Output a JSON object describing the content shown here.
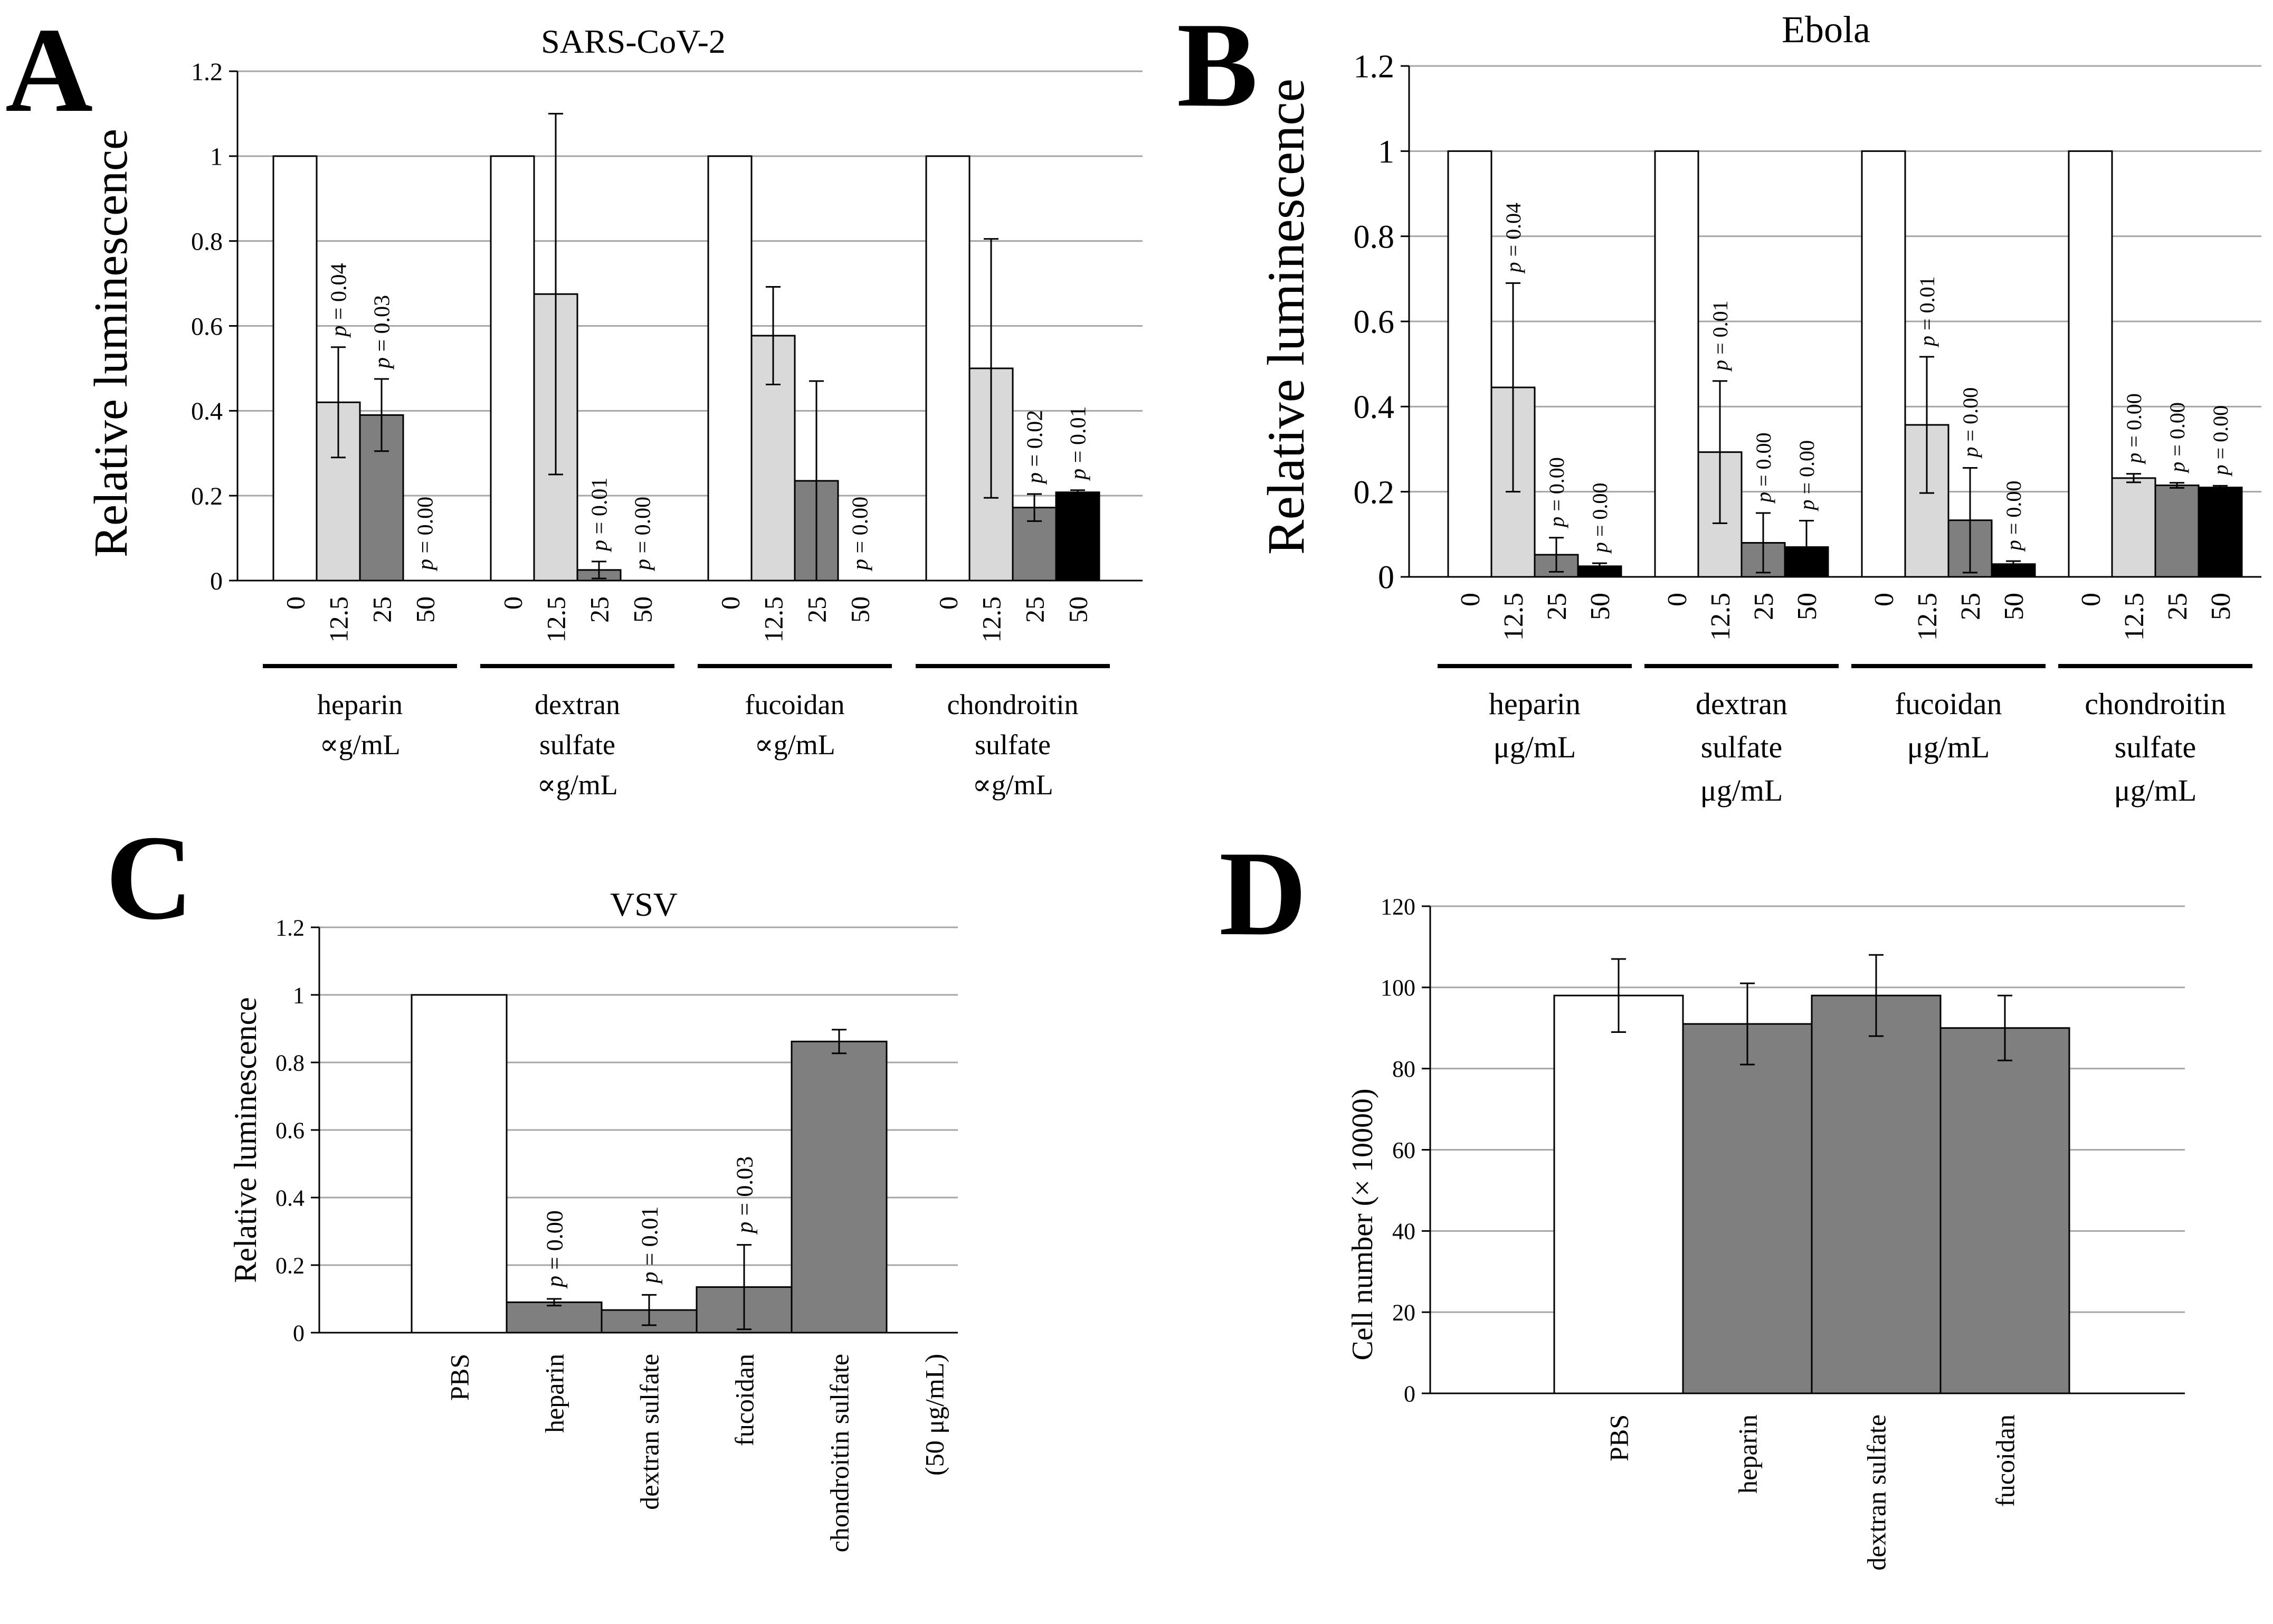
{
  "figure": {
    "colors": {
      "white": "#ffffff",
      "light": "#d9d9d9",
      "mid": "#7f7f7f",
      "black": "#000000",
      "grid": "#a6a6a6",
      "stroke": "#000000"
    }
  },
  "chart_data": [
    {
      "panel": "A",
      "type": "bar",
      "title": "SARS-CoV-2",
      "ylabel": "Relative luminescence",
      "ylim": [
        0,
        1.2
      ],
      "yticks": [
        "0",
        "0.2",
        "0.4",
        "0.6",
        "0.8",
        "1",
        "1.2"
      ],
      "grid": true,
      "doses": [
        "0",
        "12.5",
        "25",
        "50"
      ],
      "groups": [
        {
          "label_lines": [
            "heparin",
            "∝g/mL"
          ],
          "values": [
            1,
            0.42,
            0.39,
            0
          ],
          "errors": [
            null,
            0.13,
            0.085,
            null
          ],
          "pvalues": [
            null,
            "= 0.04",
            "= 0.03",
            "= 0.00"
          ]
        },
        {
          "label_lines": [
            "dextran",
            "sulfate",
            "∝g/mL"
          ],
          "values": [
            1,
            0.675,
            0.025,
            0
          ],
          "errors": [
            null,
            0.425,
            0.02,
            null
          ],
          "pvalues": [
            null,
            null,
            "= 0.01",
            "= 0.00"
          ]
        },
        {
          "label_lines": [
            "fucoidan",
            "∝g/mL"
          ],
          "values": [
            1,
            0.577,
            0.235,
            0
          ],
          "errors": [
            null,
            0.115,
            0.235,
            null
          ],
          "pvalues": [
            null,
            null,
            null,
            "= 0.00"
          ]
        },
        {
          "label_lines": [
            "chondroitin",
            "sulfate",
            "∝g/mL"
          ],
          "values": [
            1,
            0.5,
            0.172,
            0.208
          ],
          "errors": [
            null,
            0.305,
            0.032,
            0.005
          ],
          "pvalues": [
            null,
            null,
            "= 0.02",
            "= 0.01"
          ]
        }
      ]
    },
    {
      "panel": "B",
      "type": "bar",
      "title": "Ebola",
      "ylabel": "Relative luminescence",
      "ylim": [
        0,
        1.2
      ],
      "yticks": [
        "0",
        "0.2",
        "0.4",
        "0.6",
        "0.8",
        "1",
        "1.2"
      ],
      "grid": true,
      "doses": [
        "0",
        "12.5",
        "25",
        "50"
      ],
      "groups": [
        {
          "label_lines": [
            "heparin",
            "μg/mL"
          ],
          "values": [
            1,
            0.445,
            0.052,
            0.025
          ],
          "errors": [
            null,
            0.245,
            0.04,
            0.007
          ],
          "pvalues": [
            null,
            "= 0.04",
            "= 0.00",
            "= 0.00"
          ]
        },
        {
          "label_lines": [
            "dextran",
            "sulfate",
            "μg/mL"
          ],
          "values": [
            1,
            0.293,
            0.08,
            0.07
          ],
          "errors": [
            null,
            0.167,
            0.07,
            0.062
          ],
          "pvalues": [
            null,
            "= 0.01",
            "= 0.00",
            "= 0.00"
          ]
        },
        {
          "label_lines": [
            "fucoidan",
            "μg/mL"
          ],
          "values": [
            1,
            0.357,
            0.133,
            0.03
          ],
          "errors": [
            null,
            0.16,
            0.123,
            0.007
          ],
          "pvalues": [
            null,
            "= 0.01",
            "= 0.00",
            "= 0.00"
          ]
        },
        {
          "label_lines": [
            "chondroitin",
            "sulfate",
            "μg/mL"
          ],
          "values": [
            1,
            0.232,
            0.215,
            0.21
          ],
          "errors": [
            null,
            0.01,
            0.006,
            0.004
          ],
          "pvalues": [
            null,
            "= 0.00",
            "= 0.00",
            "= 0.00"
          ]
        }
      ]
    },
    {
      "panel": "C",
      "type": "bar",
      "title": "VSV",
      "ylabel": "Relative luminescence",
      "ylim": [
        0,
        1.2
      ],
      "yticks": [
        "0",
        "0.2",
        "0.4",
        "0.6",
        "0.8",
        "1",
        "1.2"
      ],
      "grid": true,
      "categories": [
        "PBS",
        "heparin",
        "dextran sulfate",
        "fucoidan",
        "chondroitin sulfate"
      ],
      "values": [
        1,
        0.09,
        0.067,
        0.135,
        0.862
      ],
      "errors": [
        null,
        0.01,
        0.045,
        0.125,
        0.035
      ],
      "pvalues": [
        null,
        "= 0.00",
        "= 0.01",
        "= 0.03",
        null
      ],
      "fills": [
        "white",
        "mid",
        "mid",
        "mid",
        "mid"
      ],
      "extra_label": "(50 μg/mL)"
    },
    {
      "panel": "D",
      "type": "bar",
      "title": "",
      "ylabel": "Cell number (× 10000)",
      "ylim": [
        0,
        120
      ],
      "yticks": [
        "0",
        "20",
        "40",
        "60",
        "80",
        "100",
        "120"
      ],
      "grid": true,
      "categories": [
        "PBS",
        "heparin",
        "dextran sulfate",
        "fucoidan"
      ],
      "values": [
        98,
        91,
        98,
        90
      ],
      "errors": [
        9,
        10,
        10,
        8
      ],
      "fills": [
        "white",
        "mid",
        "mid",
        "mid"
      ]
    }
  ]
}
